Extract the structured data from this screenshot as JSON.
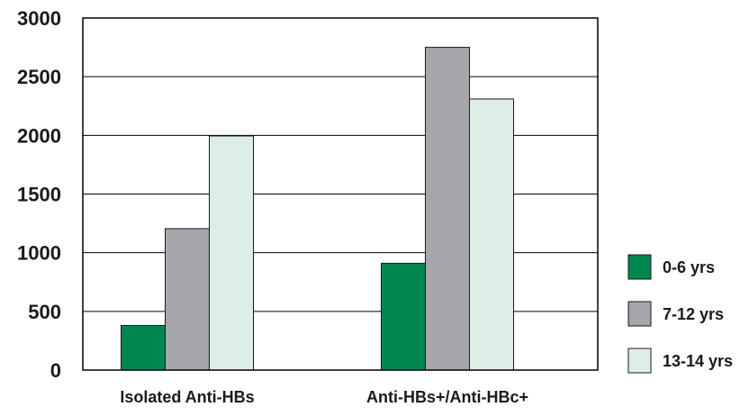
{
  "chart_data": {
    "type": "bar",
    "title": "",
    "xlabel": "",
    "ylabel": "",
    "categories": [
      "Isolated Anti-HBs",
      "Anti-HBs+/Anti-HBc+"
    ],
    "series": [
      {
        "name": "0-6 yrs",
        "values": [
          380,
          910
        ],
        "color": "#00874f"
      },
      {
        "name": "7-12 yrs",
        "values": [
          1205,
          2750
        ],
        "color": "#a6a6ab"
      },
      {
        "name": "13-14 yrs",
        "values": [
          1995,
          2310
        ],
        "color": "#dceee6"
      }
    ],
    "ylim": [
      0,
      3000
    ],
    "yticks": [
      0,
      500,
      1000,
      1500,
      2000,
      2500,
      3000
    ],
    "grid": true,
    "legend_position": "right"
  }
}
